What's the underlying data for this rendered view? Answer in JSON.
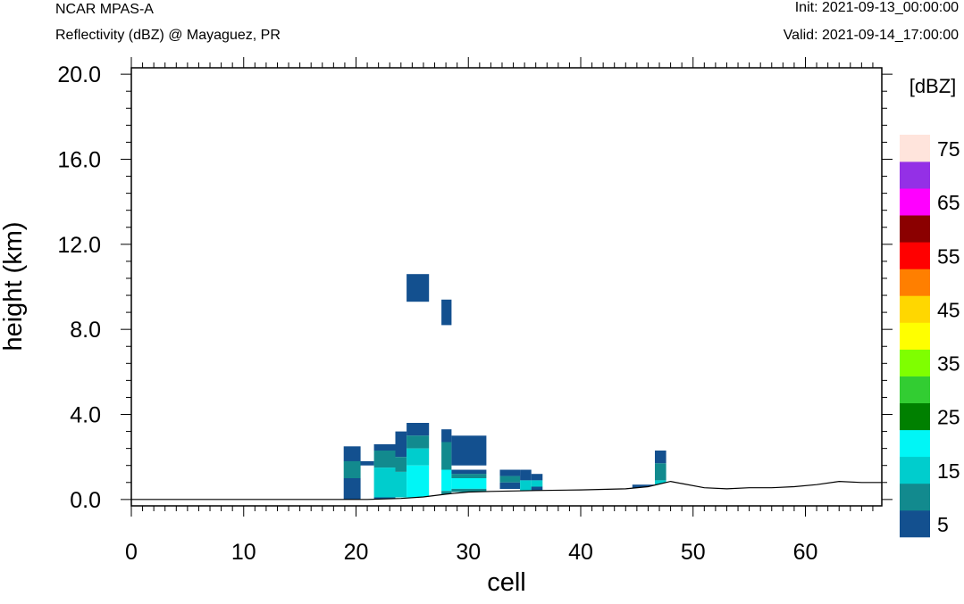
{
  "header": {
    "model": "NCAR MPAS-A",
    "field": "Reflectivity (dBZ) @ Mayaguez, PR",
    "init": "Init: 2021-09-13_00:00:00",
    "valid": "Valid: 2021-09-14_17:00:00"
  },
  "chart_data": {
    "type": "heatmap",
    "xlabel": "cell",
    "ylabel": "height (km)",
    "xlim": [
      0,
      66.8
    ],
    "ylim": [
      -0.3,
      20.3
    ],
    "x_ticks": [
      0,
      10,
      20,
      30,
      40,
      50,
      60
    ],
    "y_ticks": [
      0,
      4,
      8,
      12,
      16,
      20
    ],
    "y_tick_labels": [
      "0.0",
      "4.0",
      "8.0",
      "12.0",
      "16.0",
      "20.0"
    ],
    "colorbar": {
      "units": "[dBZ]",
      "labels": [
        "5",
        "15",
        "25",
        "35",
        "45",
        "55",
        "65",
        "75"
      ],
      "bounds": [
        0,
        10,
        15,
        20,
        25,
        30,
        35,
        40,
        45,
        50,
        55,
        60,
        65,
        70,
        75
      ],
      "colors": [
        "#13508f",
        "#128a8e",
        "#00cdcd",
        "#00f6f6",
        "#008000",
        "#32cd32",
        "#7fff00",
        "#ffff00",
        "#ffd700",
        "#ff7f00",
        "#ff0000",
        "#8b0000",
        "#ff00ff",
        "#9430e6",
        "#ffe4dc"
      ]
    },
    "terrain": [
      [
        0,
        0
      ],
      [
        18.9,
        0
      ],
      [
        21,
        0
      ],
      [
        24,
        0.05
      ],
      [
        26,
        0.12
      ],
      [
        28,
        0.25
      ],
      [
        30,
        0.35
      ],
      [
        32,
        0.38
      ],
      [
        36,
        0.42
      ],
      [
        40,
        0.45
      ],
      [
        44,
        0.5
      ],
      [
        46,
        0.6
      ],
      [
        48,
        0.85
      ],
      [
        49,
        0.75
      ],
      [
        51,
        0.55
      ],
      [
        53,
        0.5
      ],
      [
        55,
        0.55
      ],
      [
        57,
        0.55
      ],
      [
        59,
        0.6
      ],
      [
        61,
        0.7
      ],
      [
        63,
        0.85
      ],
      [
        65,
        0.8
      ],
      [
        66.8,
        0.8
      ]
    ],
    "cells": [
      {
        "x0": 18.9,
        "x1": 20.4,
        "y0": 1.8,
        "y1": 2.5,
        "dbz": 5
      },
      {
        "x0": 18.9,
        "x1": 20.4,
        "y0": 1.0,
        "y1": 1.8,
        "dbz": 10
      },
      {
        "x0": 18.9,
        "x1": 20.4,
        "y0": 0.0,
        "y1": 1.0,
        "dbz": 5
      },
      {
        "x0": 20.4,
        "x1": 21.6,
        "y0": 1.6,
        "y1": 1.8,
        "dbz": 5
      },
      {
        "x0": 21.6,
        "x1": 23.5,
        "y0": 2.3,
        "y1": 2.6,
        "dbz": 5
      },
      {
        "x0": 21.6,
        "x1": 23.5,
        "y0": 1.5,
        "y1": 2.3,
        "dbz": 10
      },
      {
        "x0": 21.6,
        "x1": 23.5,
        "y0": 0.1,
        "y1": 1.5,
        "dbz": 15
      },
      {
        "x0": 21.6,
        "x1": 23.5,
        "y0": 0.0,
        "y1": 0.1,
        "dbz": 5
      },
      {
        "x0": 23.5,
        "x1": 24.5,
        "y0": 2.0,
        "y1": 3.2,
        "dbz": 5
      },
      {
        "x0": 23.5,
        "x1": 24.5,
        "y0": 1.3,
        "y1": 2.0,
        "dbz": 10
      },
      {
        "x0": 23.5,
        "x1": 24.5,
        "y0": 0.1,
        "y1": 1.3,
        "dbz": 15
      },
      {
        "x0": 24.5,
        "x1": 26.5,
        "y0": 3.0,
        "y1": 3.6,
        "dbz": 5
      },
      {
        "x0": 24.5,
        "x1": 26.5,
        "y0": 2.4,
        "y1": 3.0,
        "dbz": 10
      },
      {
        "x0": 24.5,
        "x1": 26.5,
        "y0": 1.6,
        "y1": 2.4,
        "dbz": 15
      },
      {
        "x0": 24.5,
        "x1": 26.5,
        "y0": 0.1,
        "y1": 1.6,
        "dbz": 20
      },
      {
        "x0": 24.5,
        "x1": 26.5,
        "y0": 9.3,
        "y1": 10.6,
        "dbz": 5
      },
      {
        "x0": 27.6,
        "x1": 28.5,
        "y0": 8.2,
        "y1": 9.4,
        "dbz": 5
      },
      {
        "x0": 27.6,
        "x1": 28.5,
        "y0": 2.7,
        "y1": 3.3,
        "dbz": 5
      },
      {
        "x0": 27.6,
        "x1": 28.5,
        "y0": 1.4,
        "y1": 2.7,
        "dbz": 10
      },
      {
        "x0": 27.6,
        "x1": 28.5,
        "y0": 0.4,
        "y1": 1.4,
        "dbz": 20
      },
      {
        "x0": 27.6,
        "x1": 28.5,
        "y0": 0.25,
        "y1": 0.4,
        "dbz": 10
      },
      {
        "x0": 28.5,
        "x1": 31.6,
        "y0": 1.6,
        "y1": 3.0,
        "dbz": 5
      },
      {
        "x0": 28.5,
        "x1": 31.6,
        "y0": 1.2,
        "y1": 1.4,
        "dbz": 5
      },
      {
        "x0": 28.5,
        "x1": 31.6,
        "y0": 1.0,
        "y1": 1.2,
        "dbz": 10
      },
      {
        "x0": 28.5,
        "x1": 31.6,
        "y0": 0.5,
        "y1": 1.0,
        "dbz": 20
      },
      {
        "x0": 28.5,
        "x1": 31.6,
        "y0": 0.35,
        "y1": 0.5,
        "dbz": 10
      },
      {
        "x0": 32.8,
        "x1": 34.6,
        "y0": 1.1,
        "y1": 1.4,
        "dbz": 5
      },
      {
        "x0": 32.8,
        "x1": 34.6,
        "y0": 0.8,
        "y1": 1.1,
        "dbz": 10
      },
      {
        "x0": 32.8,
        "x1": 34.6,
        "y0": 0.5,
        "y1": 0.8,
        "dbz": 5
      },
      {
        "x0": 34.6,
        "x1": 35.6,
        "y0": 0.9,
        "y1": 1.4,
        "dbz": 5
      },
      {
        "x0": 34.6,
        "x1": 35.6,
        "y0": 0.4,
        "y1": 0.9,
        "dbz": 15
      },
      {
        "x0": 35.6,
        "x1": 36.6,
        "y0": 0.9,
        "y1": 1.2,
        "dbz": 5
      },
      {
        "x0": 35.6,
        "x1": 36.6,
        "y0": 0.6,
        "y1": 0.9,
        "dbz": 15
      },
      {
        "x0": 35.6,
        "x1": 36.6,
        "y0": 0.4,
        "y1": 0.6,
        "dbz": 5
      },
      {
        "x0": 44.6,
        "x1": 46.6,
        "y0": 0.5,
        "y1": 0.7,
        "dbz": 5
      },
      {
        "x0": 46.6,
        "x1": 47.6,
        "y0": 1.7,
        "y1": 2.3,
        "dbz": 5
      },
      {
        "x0": 46.6,
        "x1": 47.6,
        "y0": 0.9,
        "y1": 1.7,
        "dbz": 10
      },
      {
        "x0": 46.6,
        "x1": 47.6,
        "y0": 0.65,
        "y1": 0.9,
        "dbz": 15
      }
    ]
  }
}
